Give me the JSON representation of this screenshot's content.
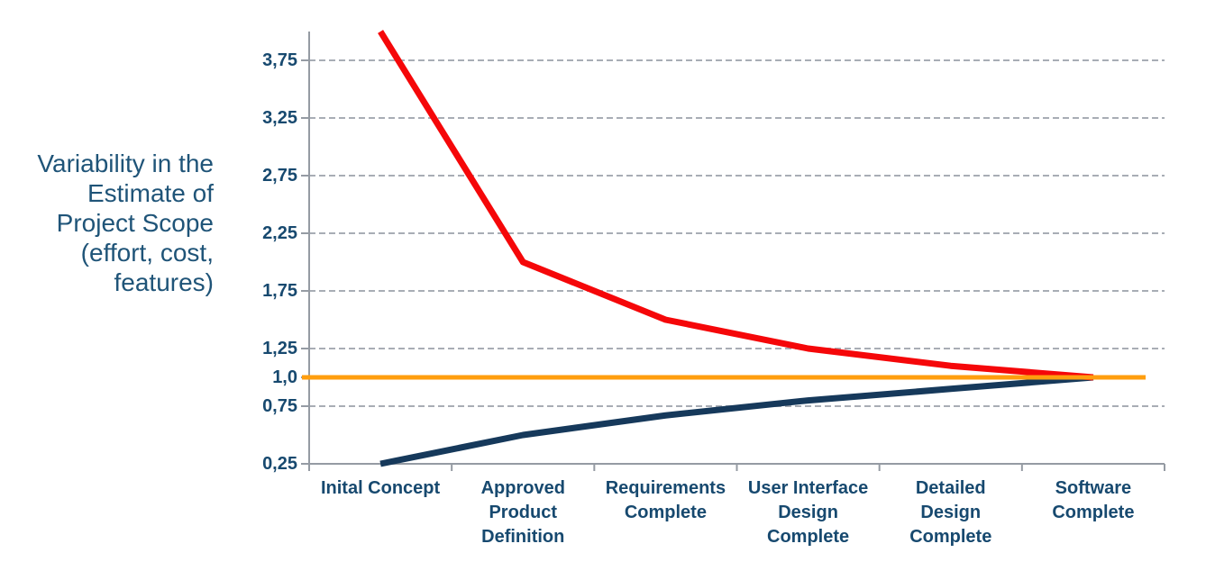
{
  "side_label": {
    "lines": [
      "Variability in the",
      "Estimate of",
      "Project Scope",
      "(effort, cost,",
      "features)"
    ]
  },
  "colors": {
    "background": "#FFFFFF",
    "side_label_text": "#1F5478",
    "axis_label_text": "#17496F",
    "upper_line": "#F50709",
    "lower_line": "#16395B",
    "baseline_line": "#FF9E0E",
    "gridline": "#A8ADB5",
    "axis": "#959BA3"
  },
  "chart_data": {
    "type": "line",
    "title": "",
    "ylabel": "Variability in the Estimate of Project Scope (effort, cost, features)",
    "xlabel": "",
    "legend": "none",
    "grid": "dashed-horizontal",
    "ylim": [
      0.25,
      4.0
    ],
    "categories": [
      "Inital Concept",
      "Approved\nProduct\nDefinition",
      "Requirements\nComplete",
      "User Interface\nDesign\nComplete",
      "Detailed\nDesign\nComplete",
      "Software\nComplete"
    ],
    "series": [
      {
        "name": "upper-estimate-bound",
        "color_key": "upper_line",
        "values": [
          4.0,
          2.0,
          1.5,
          1.25,
          1.1,
          1.0
        ]
      },
      {
        "name": "lower-estimate-bound",
        "color_key": "lower_line",
        "values": [
          0.25,
          0.5,
          0.67,
          0.8,
          0.9,
          1.0
        ]
      },
      {
        "name": "final-estimate-baseline",
        "color_key": "baseline_line",
        "style": "horizontal-baseline",
        "values": [
          1.0,
          1.0,
          1.0,
          1.0,
          1.0,
          1.0
        ]
      }
    ],
    "y_ticks": [
      {
        "value": 3.75,
        "label": "3,75",
        "gridline": true
      },
      {
        "value": 3.25,
        "label": "3,25",
        "gridline": true
      },
      {
        "value": 2.75,
        "label": "2,75",
        "gridline": true
      },
      {
        "value": 2.25,
        "label": "2,25",
        "gridline": true
      },
      {
        "value": 1.75,
        "label": "1,75",
        "gridline": true
      },
      {
        "value": 1.25,
        "label": "1,25",
        "gridline": true
      },
      {
        "value": 1.0,
        "label": "1,0",
        "gridline": false
      },
      {
        "value": 0.75,
        "label": "0,75",
        "gridline": true
      },
      {
        "value": 0.25,
        "label": "0,25",
        "gridline": false
      }
    ]
  }
}
